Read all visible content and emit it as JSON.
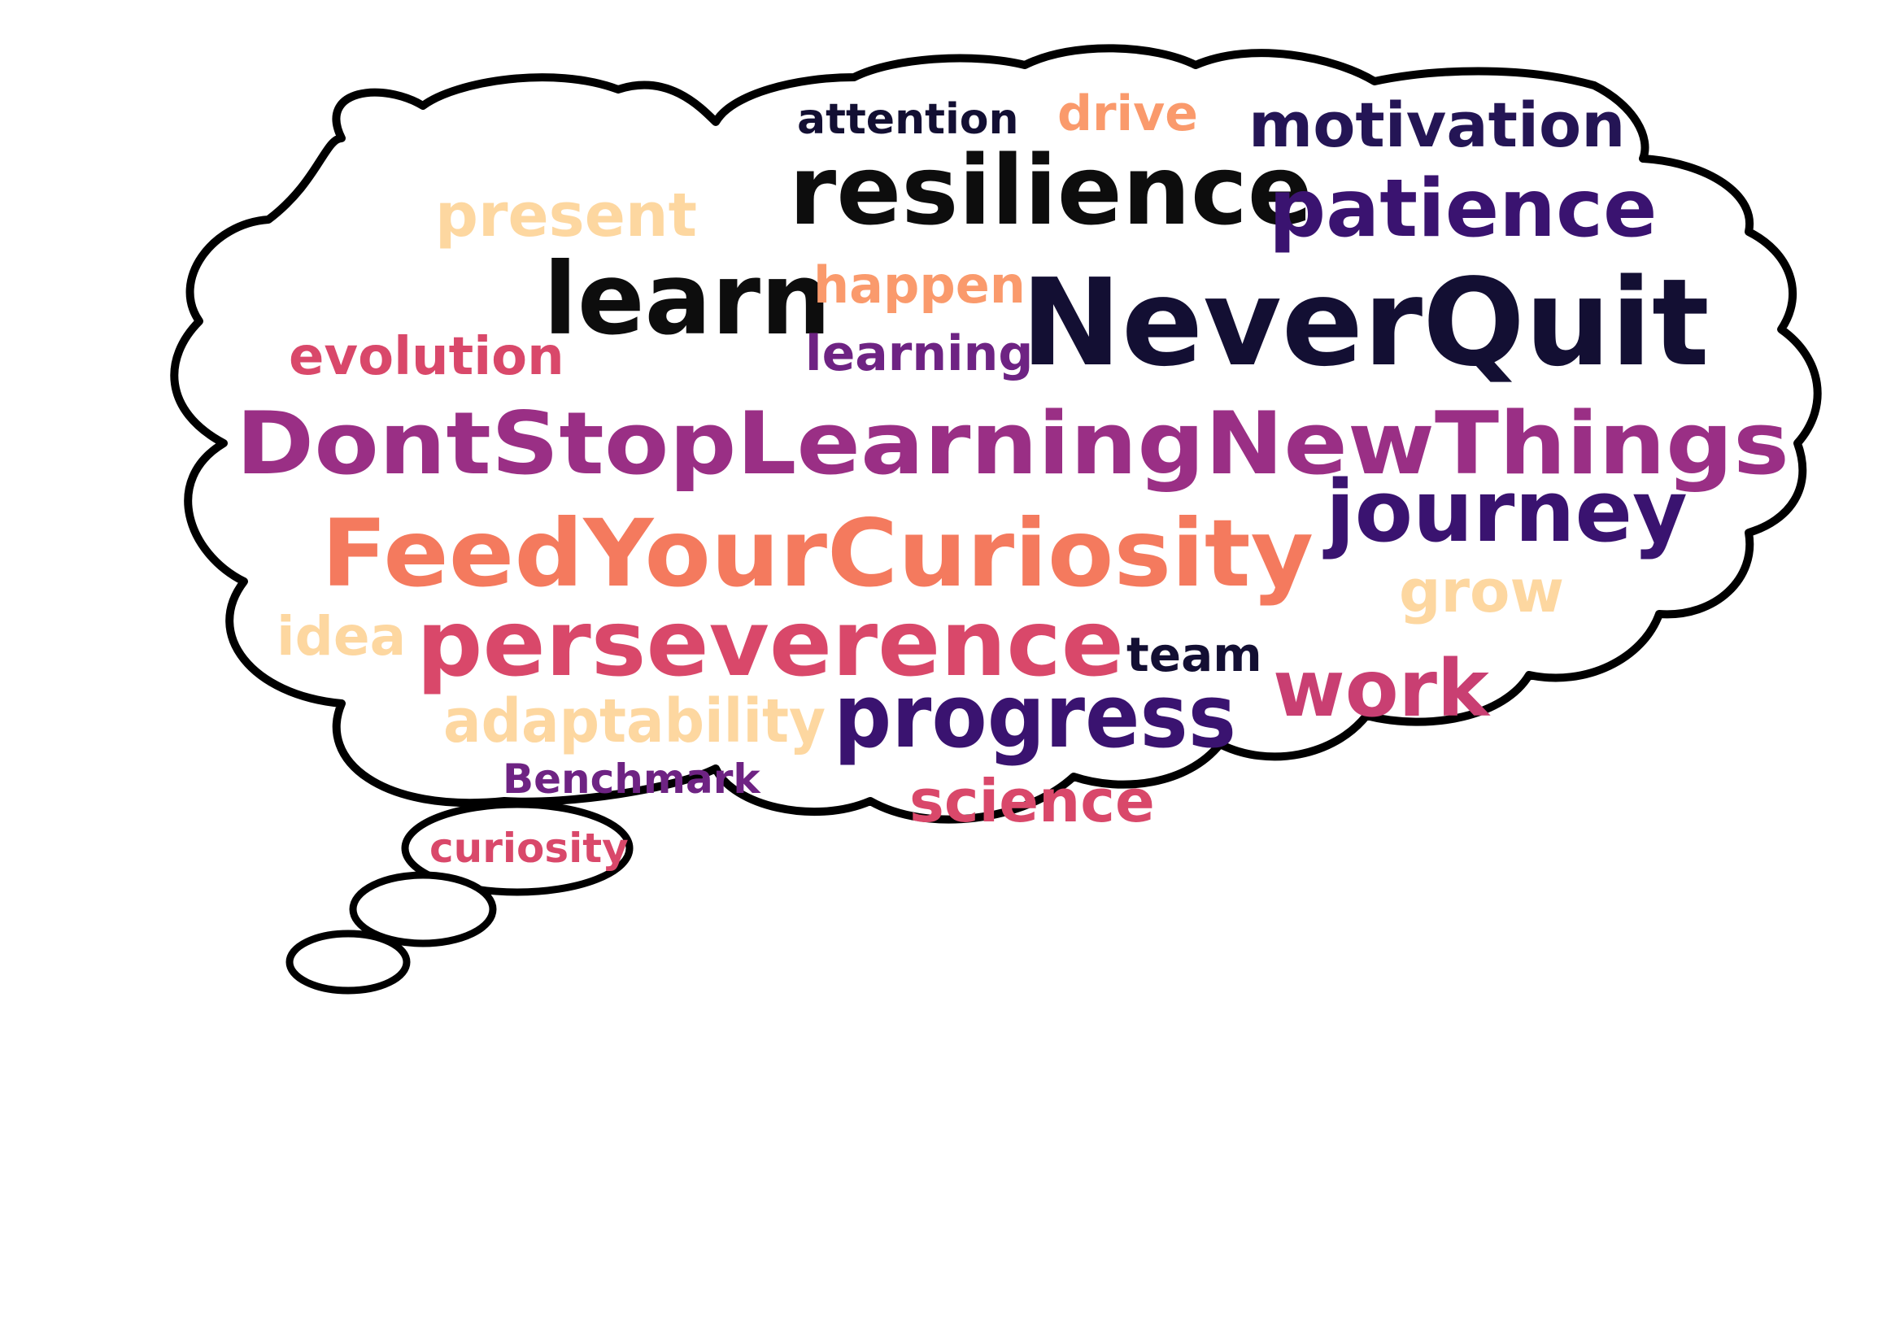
{
  "palette": {
    "outline": "#000000",
    "cloud_fill": "#ffffff",
    "black": "#0d0d0d",
    "navy": "#130f33",
    "deep_purple": "#3a1370",
    "purple": "#8a2b86",
    "magenta": "#b2367f",
    "raspberry": "#d9486a",
    "coral": "#f46f5e",
    "orange": "#fa9a6c",
    "peach": "#fdd7a0"
  },
  "words": [
    {
      "id": "attention",
      "text": "attention",
      "color": "#130f33"
    },
    {
      "id": "drive",
      "text": "drive",
      "color": "#fa9a6c"
    },
    {
      "id": "motivation",
      "text": "motivation",
      "color": "#241555"
    },
    {
      "id": "resilience",
      "text": "resilience",
      "color": "#0d0d0d"
    },
    {
      "id": "patience",
      "text": "patience",
      "color": "#3a1370"
    },
    {
      "id": "present",
      "text": "present",
      "color": "#fdd7a0"
    },
    {
      "id": "learn",
      "text": "learn",
      "color": "#0d0d0d"
    },
    {
      "id": "happen",
      "text": "happen",
      "color": "#fa9a6c"
    },
    {
      "id": "learning",
      "text": "learning",
      "color": "#6e2383"
    },
    {
      "id": "neverquit",
      "text": "NeverQuit",
      "color": "#130f33"
    },
    {
      "id": "evolution",
      "text": "evolution",
      "color": "#d9486a"
    },
    {
      "id": "dontstop",
      "text": "DontStopLearningNewThings",
      "color": "#9a2f85"
    },
    {
      "id": "feedyourcuriosity",
      "text": "FeedYourCuriosity",
      "color": "#f47a5e"
    },
    {
      "id": "journey",
      "text": "journey",
      "color": "#3a1370"
    },
    {
      "id": "grow",
      "text": "grow",
      "color": "#fdd7a0"
    },
    {
      "id": "idea",
      "text": "idea",
      "color": "#fdd7a0"
    },
    {
      "id": "perseverence",
      "text": "perseverence",
      "color": "#d9486a"
    },
    {
      "id": "team",
      "text": "team",
      "color": "#130f33"
    },
    {
      "id": "work",
      "text": "work",
      "color": "#c93f72"
    },
    {
      "id": "adaptability",
      "text": "adaptability",
      "color": "#fdd7a0"
    },
    {
      "id": "progress",
      "text": "progress",
      "color": "#3a1370"
    },
    {
      "id": "benchmark",
      "text": "Benchmark",
      "color": "#6e2383"
    },
    {
      "id": "science",
      "text": "science",
      "color": "#d9486a"
    },
    {
      "id": "curiosity",
      "text": "curiosity",
      "color": "#d9486a"
    }
  ]
}
